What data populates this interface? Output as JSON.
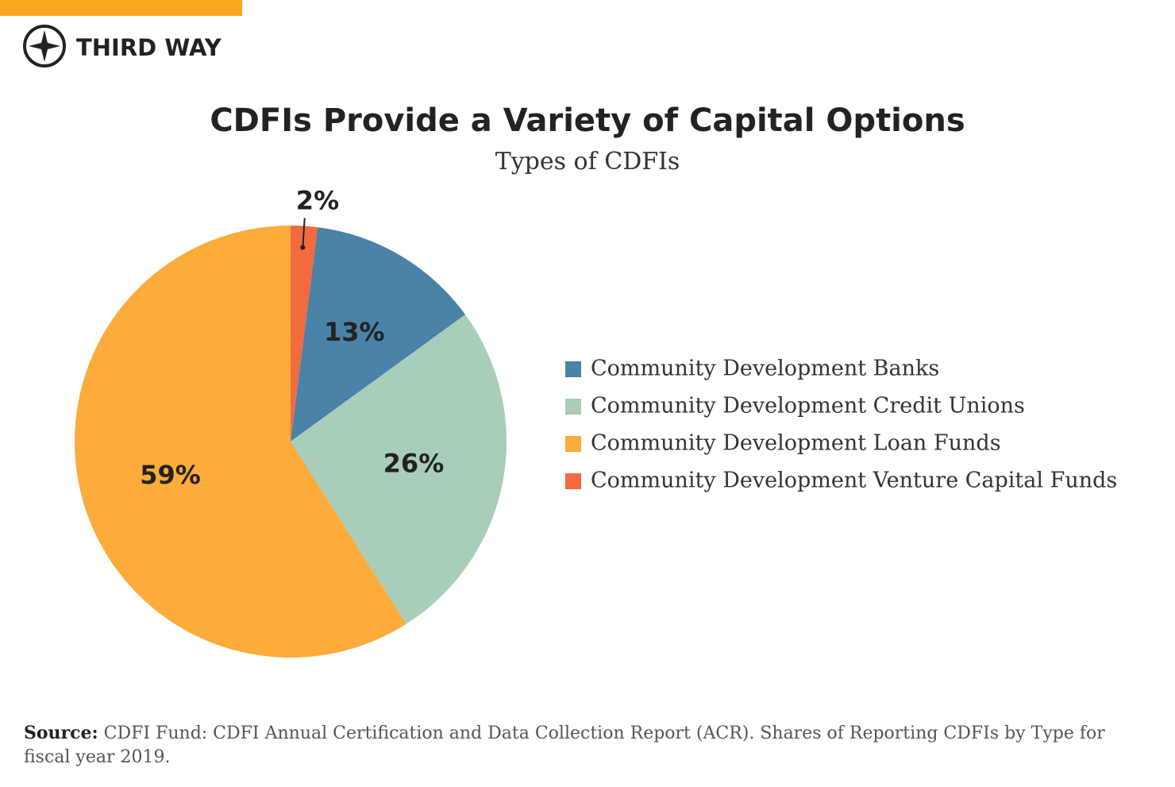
{
  "brand": "THIRD WAY",
  "chart_data": {
    "type": "pie",
    "title": "CDFIs Provide a Variety of Capital Options",
    "subtitle": "Types of CDFIs",
    "categories": [
      "Community Development Banks",
      "Community Development Credit Unions",
      "Community Development Loan Funds",
      "Community Development Venture Capital Funds"
    ],
    "values": [
      13,
      26,
      59,
      2
    ],
    "value_labels": [
      "13%",
      "26%",
      "59%",
      "2%"
    ],
    "colors": [
      "#4a82a8",
      "#a8cdb8",
      "#fdab3a",
      "#f26a3d"
    ],
    "legend": "right"
  },
  "source": {
    "label": "Source:",
    "text": "CDFI Fund: CDFI Annual Certification and Data Collection Report (ACR). Shares of Reporting CDFIs by Type for fiscal year 2019."
  }
}
